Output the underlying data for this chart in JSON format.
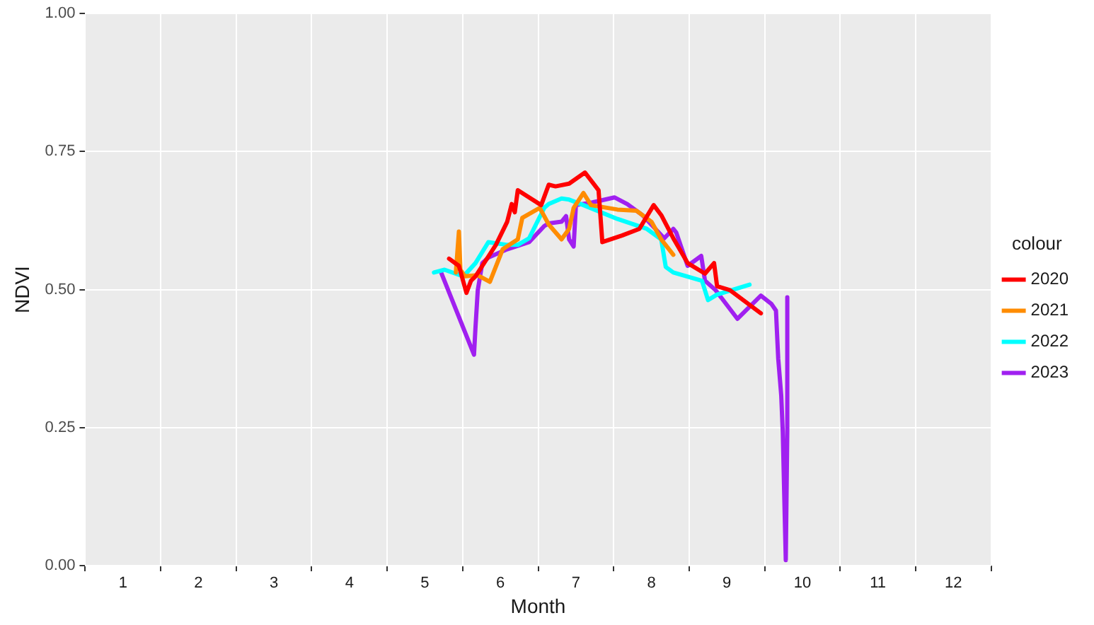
{
  "chart_data": {
    "type": "line",
    "xlabel": "Month",
    "ylabel": "NDVI",
    "legend_title": "colour",
    "legend": "right",
    "grid": true,
    "marker": "none",
    "line_style": "solid",
    "xlim": [
      1,
      13
    ],
    "xticks": [
      {
        "value": 1,
        "label": null
      },
      {
        "value": 1.5,
        "label": "1"
      },
      {
        "value": 2,
        "label": null
      },
      {
        "value": 2.5,
        "label": "2"
      },
      {
        "value": 3,
        "label": null
      },
      {
        "value": 3.5,
        "label": "3"
      },
      {
        "value": 4,
        "label": null
      },
      {
        "value": 4.5,
        "label": "4"
      },
      {
        "value": 5,
        "label": null
      },
      {
        "value": 5.5,
        "label": "5"
      },
      {
        "value": 6,
        "label": null
      },
      {
        "value": 6.5,
        "label": "6"
      },
      {
        "value": 7,
        "label": null
      },
      {
        "value": 7.5,
        "label": "7"
      },
      {
        "value": 8,
        "label": null
      },
      {
        "value": 8.5,
        "label": "8"
      },
      {
        "value": 9,
        "label": null
      },
      {
        "value": 9.5,
        "label": "9"
      },
      {
        "value": 10,
        "label": null
      },
      {
        "value": 10.5,
        "label": "10"
      },
      {
        "value": 11,
        "label": null
      },
      {
        "value": 11.5,
        "label": "11"
      },
      {
        "value": 12,
        "label": null
      },
      {
        "value": 12.5,
        "label": "12"
      },
      {
        "value": 13,
        "label": null
      }
    ],
    "ylim": [
      0,
      1
    ],
    "yticks": [
      {
        "value": 0,
        "label": "0.00"
      },
      {
        "value": 0.25,
        "label": "0.25"
      },
      {
        "value": 0.5,
        "label": "0.50"
      },
      {
        "value": 0.75,
        "label": "0.75"
      },
      {
        "value": 1,
        "label": "1.00"
      }
    ],
    "series": [
      {
        "name": "2020",
        "color": "#ff0000",
        "x": [
          5.82,
          5.95,
          6.05,
          6.11,
          6.17,
          6.44,
          6.59,
          6.65,
          6.69,
          6.73,
          7.04,
          7.14,
          7.23,
          7.41,
          7.62,
          7.8,
          7.85,
          8.11,
          8.34,
          8.53,
          8.63,
          8.79,
          8.98,
          9.21,
          9.33,
          9.37,
          9.54,
          9.95
        ],
        "values": [
          0.556,
          0.543,
          0.494,
          0.516,
          0.524,
          0.581,
          0.623,
          0.655,
          0.64,
          0.68,
          0.653,
          0.69,
          0.687,
          0.692,
          0.712,
          0.68,
          0.586,
          0.598,
          0.61,
          0.653,
          0.635,
          0.593,
          0.548,
          0.529,
          0.548,
          0.506,
          0.499,
          0.457
        ]
      },
      {
        "name": "2021",
        "color": "#ff8c00",
        "x": [
          5.91,
          5.95,
          5.97,
          6.03,
          6.2,
          6.36,
          6.53,
          6.73,
          6.79,
          7.02,
          7.14,
          7.31,
          7.41,
          7.47,
          7.6,
          7.7,
          8.05,
          8.3,
          8.5,
          8.63,
          8.79
        ],
        "values": [
          0.531,
          0.605,
          0.536,
          0.524,
          0.526,
          0.514,
          0.573,
          0.591,
          0.63,
          0.648,
          0.618,
          0.591,
          0.61,
          0.648,
          0.675,
          0.653,
          0.645,
          0.643,
          0.623,
          0.591,
          0.563
        ]
      },
      {
        "name": "2022",
        "color": "#00ffff",
        "x": [
          5.62,
          5.76,
          6.01,
          6.17,
          6.34,
          6.59,
          6.73,
          6.88,
          7.08,
          7.14,
          7.31,
          7.41,
          7.6,
          8.05,
          8.44,
          8.63,
          8.69,
          8.79,
          9.17,
          9.25,
          9.37,
          9.8
        ],
        "values": [
          0.531,
          0.536,
          0.524,
          0.548,
          0.586,
          0.581,
          0.581,
          0.593,
          0.648,
          0.655,
          0.665,
          0.663,
          0.653,
          0.628,
          0.61,
          0.591,
          0.541,
          0.531,
          0.516,
          0.481,
          0.491,
          0.509
        ]
      },
      {
        "name": "2023",
        "color": "#a020f0",
        "x": [
          5.72,
          6.15,
          6.17,
          6.2,
          6.26,
          6.34,
          6.59,
          6.88,
          7.08,
          7.14,
          7.31,
          7.37,
          7.41,
          7.47,
          7.5,
          7.72,
          8.01,
          8.18,
          8.38,
          8.67,
          8.79,
          8.83,
          8.98,
          9.16,
          9.21,
          9.35,
          9.64,
          9.95,
          10.09,
          10.15,
          10.18,
          10.22,
          10.24,
          10.28,
          10.3,
          10.3
        ],
        "values": [
          0.529,
          0.382,
          0.432,
          0.499,
          0.548,
          0.558,
          0.573,
          0.586,
          0.615,
          0.62,
          0.623,
          0.633,
          0.591,
          0.578,
          0.653,
          0.658,
          0.667,
          0.655,
          0.635,
          0.593,
          0.61,
          0.603,
          0.543,
          0.561,
          0.516,
          0.499,
          0.447,
          0.489,
          0.474,
          0.462,
          0.375,
          0.308,
          0.243,
          0.01,
          0.243,
          0.486
        ]
      }
    ]
  }
}
